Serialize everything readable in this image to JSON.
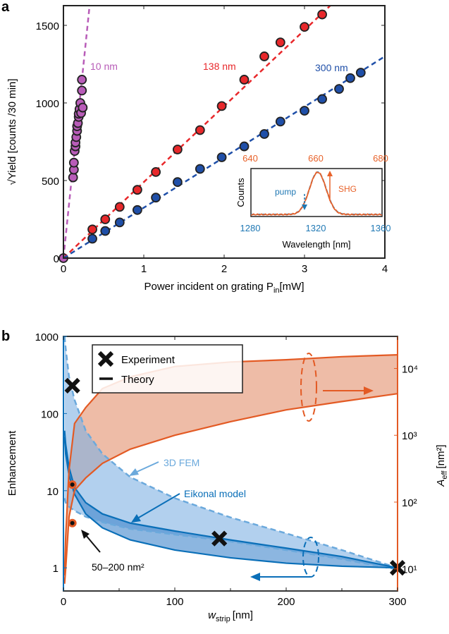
{
  "chart_data": [
    {
      "panel": "a",
      "type": "scatter",
      "xlabel": "Power incident on grating P",
      "xlabel_sub": "in",
      "xlabel_unit": "[mW]",
      "ylabel": "√Yield [counts /30 min]",
      "xlim": [
        0,
        4
      ],
      "ylim": [
        0,
        1627
      ],
      "xticks": [
        0,
        1,
        2,
        3,
        4
      ],
      "yticks": [
        0,
        500,
        1000,
        1500
      ],
      "series": [
        {
          "name": "10 nm",
          "color": "#b85cb8",
          "fill": "#b85cb8",
          "slope": 5000,
          "x": [
            0,
            0.12,
            0.13,
            0.13,
            0.14,
            0.15,
            0.15,
            0.16,
            0.17,
            0.17,
            0.18,
            0.19,
            0.19,
            0.2,
            0.21,
            0.22,
            0.23,
            0.23,
            0.24
          ],
          "y": [
            0,
            520,
            570,
            615,
            690,
            720,
            745,
            780,
            820,
            850,
            870,
            910,
            930,
            960,
            1000,
            935,
            1080,
            1150,
            970
          ]
        },
        {
          "name": "138 nm",
          "color": "#e8282b",
          "fill": "#e8282b",
          "slope": 490,
          "x": [
            0.36,
            0.52,
            0.7,
            0.92,
            1.15,
            1.42,
            1.7,
            1.97,
            2.25,
            2.5,
            2.7,
            3.0,
            3.22
          ],
          "y": [
            185,
            250,
            330,
            440,
            555,
            700,
            825,
            980,
            1150,
            1300,
            1390,
            1490,
            1570
          ]
        },
        {
          "name": "300 nm",
          "color": "#1f4fa8",
          "fill": "#1f4fa8",
          "slope": 325,
          "x": [
            0.36,
            0.52,
            0.7,
            0.92,
            1.15,
            1.42,
            1.7,
            1.97,
            2.25,
            2.5,
            2.7,
            3.0,
            3.22,
            3.43,
            3.57,
            3.7
          ],
          "y": [
            125,
            175,
            230,
            310,
            390,
            490,
            575,
            650,
            720,
            800,
            880,
            950,
            1025,
            1090,
            1160,
            1195
          ]
        }
      ],
      "inset": {
        "ylabel": "Counts",
        "xlabel": "Wavelength [nm]",
        "top_ticks": [
          "640",
          "660",
          "680"
        ],
        "bottom_ticks": [
          "1280",
          "1320",
          "1360"
        ],
        "pump_label": "pump",
        "shg_label": "SHG",
        "peak_nm": 1321,
        "pump_color": "#1f78b4",
        "shg_color": "#e8622a"
      }
    },
    {
      "panel": "b",
      "type": "line",
      "xlabel": "w",
      "xlabel_sub": "strip",
      "xlabel_unit": "[nm]",
      "ylabel": "Enhancement",
      "y2label": "A",
      "y2label_sub": "eff",
      "y2label_unit": "[nm²]",
      "xlim": [
        0,
        300
      ],
      "ylim_log10": [
        -0.3,
        3
      ],
      "y2lim_log10": [
        0.67,
        4.48
      ],
      "xticks": [
        0,
        100,
        200,
        300
      ],
      "yticks": [
        "1",
        "10",
        "100",
        "1000"
      ],
      "y2ticks": [
        "10¹",
        "10²",
        "10³",
        "10⁴"
      ],
      "legend": {
        "experiment": "Experiment",
        "theory": "Theory",
        "placement": "top-left"
      },
      "w": [
        1,
        2,
        5,
        10,
        20,
        35,
        60,
        100,
        150,
        200,
        250,
        300
      ],
      "fem_upper": [
        1000,
        700,
        300,
        150,
        60,
        30,
        15,
        8,
        4.5,
        2.8,
        1.7,
        1
      ],
      "fem_lower": [
        8,
        7,
        6.2,
        5.5,
        4.6,
        3.9,
        3.2,
        2.7,
        2.2,
        1.7,
        1.3,
        0.95
      ],
      "eikonal_upper": [
        60,
        40,
        20,
        11,
        7,
        5,
        3.8,
        3,
        2.3,
        1.8,
        1.4,
        1
      ],
      "eikonal_lower": [
        50,
        30,
        16,
        9,
        5,
        3.3,
        2.3,
        1.7,
        1.35,
        1.15,
        1.05,
        1
      ],
      "aeff_upper": [
        8,
        30,
        300,
        1500,
        2600,
        5000,
        7500,
        10700,
        12500,
        13500,
        15000,
        16000
      ],
      "aeff_lower": [
        6,
        10,
        60,
        150,
        230,
        380,
        620,
        1000,
        1600,
        2400,
        3200,
        4200
      ],
      "experiment": {
        "w": [
          8,
          140,
          300
        ],
        "enhancement": [
          230,
          2.4,
          1
        ]
      },
      "markers": {
        "w": 8,
        "enhancement": [
          12,
          3.8
        ]
      },
      "annotations": {
        "fem": "3D FEM",
        "eikonal": "Eikonal model",
        "area": "50–200 nm²"
      },
      "colors": {
        "blue": "#0a6fb8",
        "light_blue": "#6ba9dc",
        "orange": "#e35a24"
      }
    }
  ],
  "labels": {
    "a": "a",
    "b": "b"
  }
}
